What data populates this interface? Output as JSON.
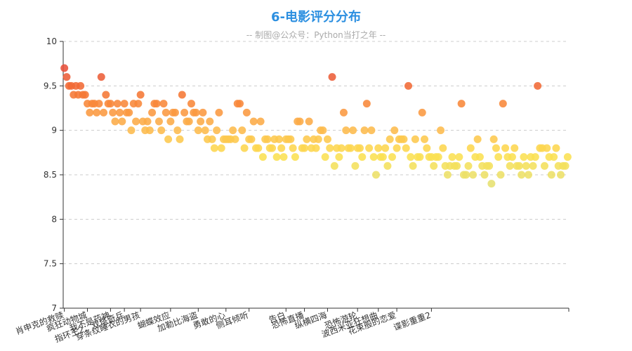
{
  "chart_data": {
    "type": "scatter",
    "title": "6-电影评分分布",
    "subtitle": "-- 制图@公众号：Python当打之年 --",
    "ylim": [
      7,
      10
    ],
    "yticks": [
      {
        "value": 7,
        "label": "7"
      },
      {
        "value": 7.5,
        "label": "7.5"
      },
      {
        "value": 8,
        "label": "8"
      },
      {
        "value": 8.5,
        "label": "8.5"
      },
      {
        "value": 9,
        "label": "9"
      },
      {
        "value": 9.5,
        "label": "9.5"
      },
      {
        "value": 10,
        "label": "10"
      }
    ],
    "grid": true,
    "visual_map": {
      "min": 8.4,
      "max": 9.7,
      "colors": [
        "#e6e070",
        "#fde050",
        "#fdb44b",
        "#f67a33",
        "#e8503a"
      ]
    },
    "category_labels": [
      {
        "index": 0,
        "label": "肖申克的救赎"
      },
      {
        "index": 10,
        "label": "疯狂动物城"
      },
      {
        "index": 20,
        "label": "我不是药神"
      },
      {
        "index": 26,
        "label": "指环王2：双塔奇兵"
      },
      {
        "index": 33,
        "label": "穿条纹睡衣的男孩"
      },
      {
        "index": 46,
        "label": "蝴蝶效应"
      },
      {
        "index": 58,
        "label": "加勒比海盗"
      },
      {
        "index": 70,
        "label": "勇敢的心"
      },
      {
        "index": 80,
        "label": "侧耳倾听"
      },
      {
        "index": 96,
        "label": "告白"
      },
      {
        "index": 104,
        "label": "恐怖直播"
      },
      {
        "index": 114,
        "label": "纵横四海"
      },
      {
        "index": 127,
        "label": "恐怖游轮"
      },
      {
        "index": 136,
        "label": "波西米亚狂想曲"
      },
      {
        "index": 144,
        "label": "花束般的恋爱"
      },
      {
        "index": 159,
        "label": "谍影重重2"
      }
    ],
    "values": [
      9.7,
      9.6,
      9.5,
      9.5,
      9.4,
      9.5,
      9.4,
      9.5,
      9.4,
      9.4,
      9.3,
      9.2,
      9.3,
      9.3,
      9.2,
      9.3,
      9.6,
      9.2,
      9.4,
      9.3,
      9.3,
      9.2,
      9.1,
      9.3,
      9.2,
      9.1,
      9.3,
      9.2,
      9.2,
      9.0,
      9.3,
      9.1,
      9.3,
      9.4,
      9.1,
      9.0,
      9.1,
      9.0,
      9.2,
      9.3,
      9.3,
      9.1,
      9.0,
      9.3,
      9.2,
      8.9,
      9.1,
      9.2,
      9.2,
      9.0,
      8.9,
      9.4,
      9.2,
      9.1,
      9.1,
      9.3,
      9.2,
      9.2,
      9.0,
      9.1,
      9.2,
      9.0,
      8.9,
      9.1,
      8.9,
      8.8,
      9.0,
      9.2,
      8.8,
      8.9,
      8.9,
      8.9,
      8.9,
      9.0,
      8.9,
      9.3,
      9.3,
      9.0,
      8.8,
      9.2,
      8.9,
      8.9,
      9.1,
      8.8,
      8.8,
      9.1,
      8.7,
      8.9,
      8.9,
      8.8,
      8.8,
      8.9,
      8.7,
      8.9,
      8.8,
      8.7,
      8.9,
      8.9,
      8.9,
      8.8,
      8.7,
      9.1,
      9.1,
      8.8,
      8.8,
      8.9,
      9.1,
      8.8,
      8.9,
      8.8,
      8.9,
      9.0,
      9.0,
      8.7,
      8.9,
      8.8,
      9.6,
      8.6,
      8.8,
      8.7,
      8.8,
      9.2,
      9.0,
      8.8,
      8.8,
      9.0,
      8.6,
      8.8,
      8.8,
      8.7,
      9.0,
      9.3,
      8.8,
      9.0,
      8.7,
      8.5,
      8.8,
      8.7,
      8.7,
      8.8,
      8.6,
      8.9,
      8.7,
      9.0,
      8.8,
      8.9,
      8.9,
      8.9,
      8.8,
      9.5,
      8.7,
      8.6,
      8.9,
      8.7,
      8.7,
      9.2,
      8.9,
      8.8,
      8.7,
      8.7,
      8.6,
      8.7,
      8.7,
      9.0,
      8.8,
      8.6,
      8.5,
      8.6,
      8.7,
      8.6,
      8.6,
      8.7,
      9.3,
      8.5,
      8.5,
      8.6,
      8.8,
      8.5,
      8.7,
      8.9,
      8.7,
      8.6,
      8.5,
      8.6,
      8.6,
      8.4,
      8.9,
      8.8,
      8.7,
      8.5,
      9.3,
      8.8,
      8.7,
      8.6,
      8.7,
      8.8,
      8.6,
      8.6,
      8.5,
      8.7,
      8.6,
      8.5,
      8.7,
      8.6,
      8.7,
      9.5,
      8.8,
      8.8,
      8.6,
      8.8,
      8.7,
      8.5,
      8.7,
      8.8,
      8.6,
      8.5,
      8.6,
      8.6,
      8.7
    ]
  }
}
